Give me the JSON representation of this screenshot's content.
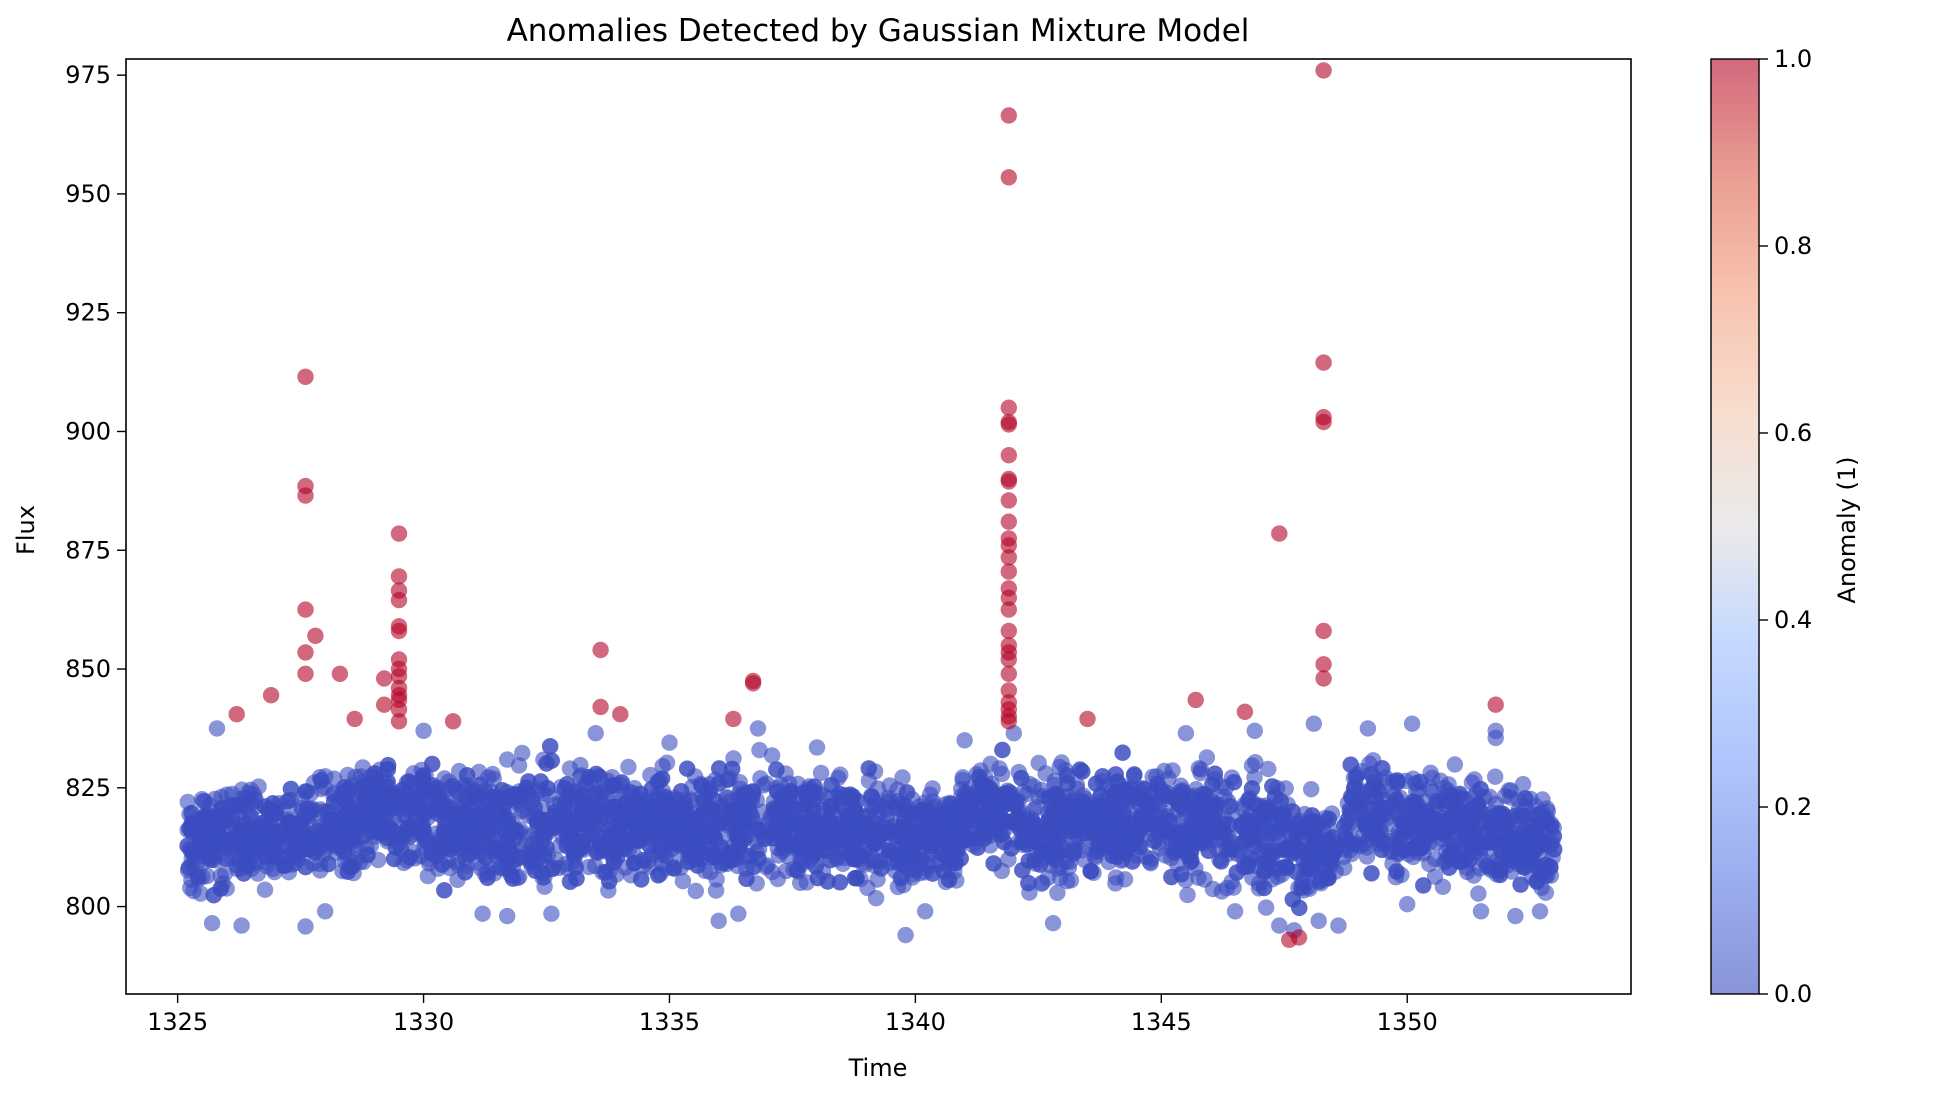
{
  "chart_data": {
    "type": "scatter",
    "title": "Anomalies Detected by Gaussian Mixture Model",
    "xlabel": "Time",
    "ylabel": "Flux",
    "xlim": [
      1323.95,
      1354.55
    ],
    "ylim": [
      781.6,
      978.4
    ],
    "xticks": [
      1325,
      1330,
      1335,
      1340,
      1345,
      1350
    ],
    "yticks": [
      800,
      825,
      850,
      875,
      900,
      925,
      950,
      975
    ],
    "grid": false,
    "colorbar": {
      "label": "Anomaly (1)",
      "range": [
        0.0,
        1.0
      ],
      "ticks": [
        "0.0",
        "0.2",
        "0.4",
        "0.6",
        "0.8",
        "1.0"
      ],
      "colormap": "coolwarm"
    },
    "colors": {
      "normal": "#3b4cc0",
      "anomaly": "#b40426"
    },
    "normal_band": {
      "x_start": 1325.2,
      "x_end": 1353.0,
      "gaps": [
        [
          1348.55,
          1348.7
        ]
      ],
      "profile": [
        {
          "x": 1325.2,
          "lo": 799,
          "hi": 828
        },
        {
          "x": 1327.0,
          "lo": 800,
          "hi": 830
        },
        {
          "x": 1328.5,
          "lo": 802,
          "hi": 833
        },
        {
          "x": 1329.5,
          "lo": 805,
          "hi": 836
        },
        {
          "x": 1330.5,
          "lo": 801,
          "hi": 833
        },
        {
          "x": 1333.0,
          "lo": 800,
          "hi": 835
        },
        {
          "x": 1335.0,
          "lo": 801,
          "hi": 832
        },
        {
          "x": 1337.0,
          "lo": 800,
          "hi": 835
        },
        {
          "x": 1339.0,
          "lo": 800,
          "hi": 830
        },
        {
          "x": 1340.5,
          "lo": 799,
          "hi": 830
        },
        {
          "x": 1341.5,
          "lo": 808,
          "hi": 834
        },
        {
          "x": 1342.5,
          "lo": 800,
          "hi": 835
        },
        {
          "x": 1344.5,
          "lo": 802,
          "hi": 833
        },
        {
          "x": 1346.0,
          "lo": 801,
          "hi": 836
        },
        {
          "x": 1347.5,
          "lo": 796,
          "hi": 832
        },
        {
          "x": 1348.5,
          "lo": 799,
          "hi": 824
        },
        {
          "x": 1349.0,
          "lo": 806,
          "hi": 836
        },
        {
          "x": 1350.5,
          "lo": 801,
          "hi": 834
        },
        {
          "x": 1352.0,
          "lo": 800,
          "hi": 831
        },
        {
          "x": 1353.0,
          "lo": 799,
          "hi": 826
        }
      ]
    },
    "normal_outliers": [
      [
        1325.8,
        837.5
      ],
      [
        1325.7,
        796.5
      ],
      [
        1326.3,
        796.0
      ],
      [
        1327.6,
        795.8
      ],
      [
        1328.0,
        799.0
      ],
      [
        1330.0,
        837.0
      ],
      [
        1331.2,
        798.5
      ],
      [
        1331.7,
        798.0
      ],
      [
        1332.6,
        798.5
      ],
      [
        1333.5,
        836.5
      ],
      [
        1335.0,
        834.5
      ],
      [
        1336.0,
        797.0
      ],
      [
        1336.4,
        798.5
      ],
      [
        1336.8,
        837.5
      ],
      [
        1338.0,
        833.5
      ],
      [
        1339.8,
        794.0
      ],
      [
        1340.2,
        799.0
      ],
      [
        1341.0,
        835.0
      ],
      [
        1342.0,
        836.5
      ],
      [
        1342.8,
        796.5
      ],
      [
        1345.5,
        836.5
      ],
      [
        1346.5,
        799.0
      ],
      [
        1346.9,
        837.0
      ],
      [
        1347.4,
        796.0
      ],
      [
        1347.7,
        795.0
      ],
      [
        1348.1,
        838.5
      ],
      [
        1348.2,
        797.0
      ],
      [
        1348.6,
        796.0
      ],
      [
        1349.2,
        837.5
      ],
      [
        1350.1,
        838.5
      ],
      [
        1350.0,
        800.5
      ],
      [
        1351.5,
        799.0
      ],
      [
        1351.8,
        837.0
      ],
      [
        1351.8,
        835.5
      ],
      [
        1352.2,
        798.0
      ],
      [
        1352.7,
        799.0
      ]
    ],
    "anomalies": [
      [
        1326.2,
        840.5
      ],
      [
        1326.9,
        844.5
      ],
      [
        1327.6,
        911.5
      ],
      [
        1327.6,
        888.5
      ],
      [
        1327.6,
        886.5
      ],
      [
        1327.6,
        862.5
      ],
      [
        1327.6,
        853.5
      ],
      [
        1327.6,
        849.0
      ],
      [
        1327.8,
        857.0
      ],
      [
        1328.3,
        849.0
      ],
      [
        1328.6,
        839.5
      ],
      [
        1329.2,
        848.0
      ],
      [
        1329.2,
        842.5
      ],
      [
        1329.5,
        878.5
      ],
      [
        1329.5,
        869.5
      ],
      [
        1329.5,
        866.5
      ],
      [
        1329.5,
        864.5
      ],
      [
        1329.5,
        859.0
      ],
      [
        1329.5,
        858.0
      ],
      [
        1329.5,
        852.0
      ],
      [
        1329.5,
        850.0
      ],
      [
        1329.5,
        848.5
      ],
      [
        1329.5,
        846.0
      ],
      [
        1329.5,
        844.5
      ],
      [
        1329.5,
        843.5
      ],
      [
        1329.5,
        841.5
      ],
      [
        1329.5,
        839.0
      ],
      [
        1330.6,
        839.0
      ],
      [
        1333.6,
        854.0
      ],
      [
        1333.6,
        842.0
      ],
      [
        1334.0,
        840.5
      ],
      [
        1336.3,
        839.5
      ],
      [
        1336.7,
        847.5
      ],
      [
        1336.7,
        847.0
      ],
      [
        1341.9,
        966.5
      ],
      [
        1341.9,
        953.5
      ],
      [
        1341.9,
        905.0
      ],
      [
        1341.9,
        902.0
      ],
      [
        1341.9,
        901.5
      ],
      [
        1341.9,
        895.0
      ],
      [
        1341.9,
        890.0
      ],
      [
        1341.9,
        889.5
      ],
      [
        1341.9,
        885.5
      ],
      [
        1341.9,
        881.0
      ],
      [
        1341.9,
        877.5
      ],
      [
        1341.9,
        876.0
      ],
      [
        1341.9,
        873.5
      ],
      [
        1341.9,
        870.5
      ],
      [
        1341.9,
        867.0
      ],
      [
        1341.9,
        865.0
      ],
      [
        1341.9,
        862.5
      ],
      [
        1341.9,
        858.0
      ],
      [
        1341.9,
        855.0
      ],
      [
        1341.9,
        853.5
      ],
      [
        1341.9,
        852.0
      ],
      [
        1341.9,
        849.0
      ],
      [
        1341.9,
        845.5
      ],
      [
        1341.9,
        843.0
      ],
      [
        1341.9,
        841.5
      ],
      [
        1341.9,
        840.0
      ],
      [
        1341.9,
        839.0
      ],
      [
        1343.5,
        839.5
      ],
      [
        1345.7,
        843.5
      ],
      [
        1346.7,
        841.0
      ],
      [
        1347.4,
        878.5
      ],
      [
        1347.6,
        793.0
      ],
      [
        1347.8,
        793.5
      ],
      [
        1348.3,
        976.0
      ],
      [
        1348.3,
        914.5
      ],
      [
        1348.3,
        903.0
      ],
      [
        1348.3,
        902.0
      ],
      [
        1348.3,
        858.0
      ],
      [
        1348.3,
        851.0
      ],
      [
        1348.3,
        848.0
      ],
      [
        1351.8,
        842.5
      ]
    ]
  }
}
